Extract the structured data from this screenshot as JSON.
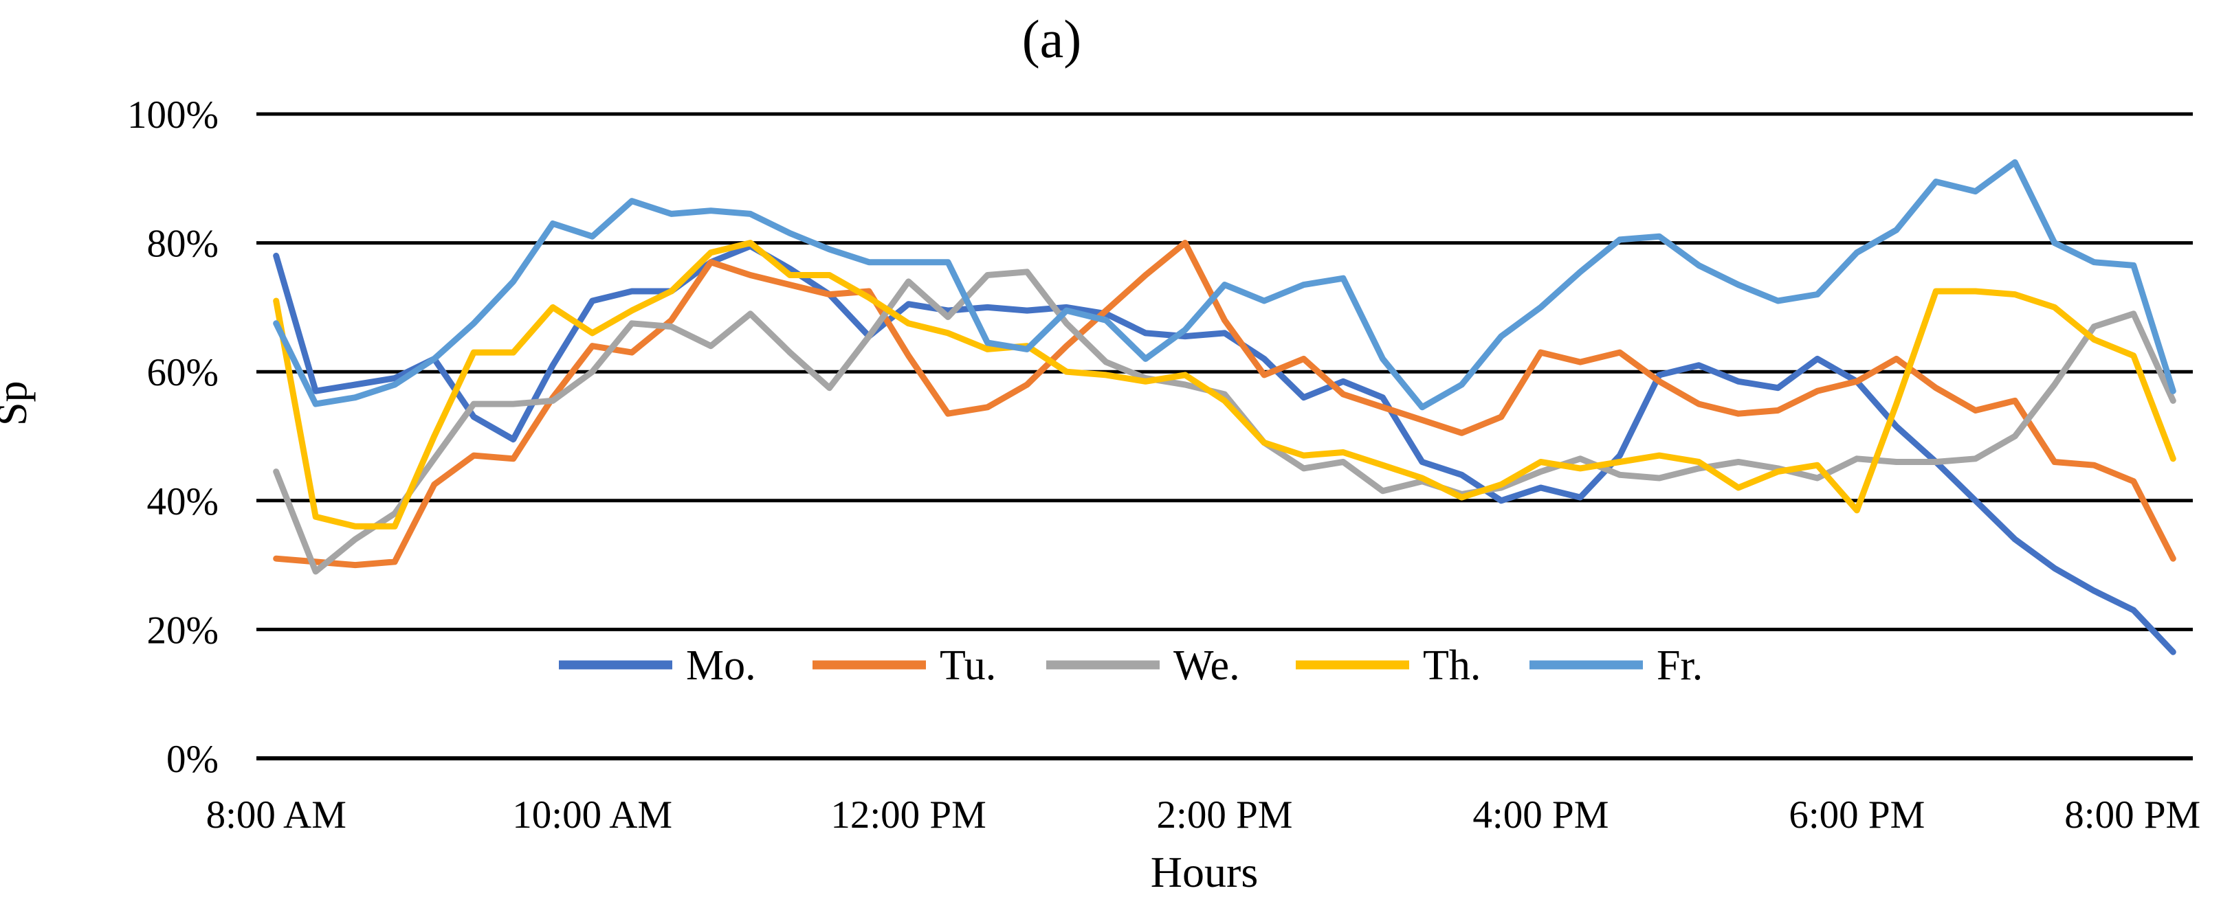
{
  "title": "(a)",
  "y_axis": {
    "title": "Sp"
  },
  "x_axis": {
    "title": "Hours"
  },
  "chart_data": {
    "type": "line",
    "title": "(a)",
    "xlabel": "Hours",
    "ylabel": "Sp",
    "ylim": [
      0,
      100
    ],
    "y_tick_step": 20,
    "y_tick_labels": [
      "0%",
      "20%",
      "40%",
      "60%",
      "80%",
      "100%"
    ],
    "grid": "horizontal",
    "legend_position": "bottom-inside",
    "x": [
      "8:00 AM",
      "8:15 AM",
      "8:30 AM",
      "8:45 AM",
      "9:00 AM",
      "9:15 AM",
      "9:30 AM",
      "9:45 AM",
      "10:00 AM",
      "10:15 AM",
      "10:30 AM",
      "10:45 AM",
      "11:00 AM",
      "11:15 AM",
      "11:30 AM",
      "11:45 AM",
      "12:00 PM",
      "12:15 PM",
      "12:30 PM",
      "12:45 PM",
      "1:00 PM",
      "1:15 PM",
      "1:30 PM",
      "1:45 PM",
      "2:00 PM",
      "2:15 PM",
      "2:30 PM",
      "2:45 PM",
      "3:00 PM",
      "3:15 PM",
      "3:30 PM",
      "3:45 PM",
      "4:00 PM",
      "4:15 PM",
      "4:30 PM",
      "4:45 PM",
      "5:00 PM",
      "5:15 PM",
      "5:30 PM",
      "5:45 PM",
      "6:00 PM",
      "6:15 PM",
      "6:30 PM",
      "6:45 PM",
      "7:00 PM",
      "7:15 PM",
      "7:30 PM",
      "7:45 PM",
      "8:00 PM"
    ],
    "x_tick_indices": [
      0,
      8,
      16,
      24,
      32,
      40,
      48
    ],
    "x_tick_labels": [
      "8:00 AM",
      "10:00 AM",
      "12:00 PM",
      "2:00 PM",
      "4:00 PM",
      "6:00 PM",
      "8:00 PM"
    ],
    "series": [
      {
        "name": "Mo.",
        "color": "#4472C4",
        "values": [
          78,
          57,
          58,
          59,
          62,
          53,
          49.5,
          61,
          71,
          72.5,
          72.5,
          77,
          79.5,
          76,
          72,
          65.5,
          70.5,
          69.5,
          70,
          69.5,
          70,
          69,
          66,
          65.5,
          66,
          62,
          56,
          58.5,
          56,
          46,
          44,
          40,
          42,
          40.5,
          47,
          59.5,
          61,
          58.5,
          57.5,
          62,
          58.5,
          51.5,
          46,
          40,
          34,
          29.5,
          26,
          23,
          16.5
        ]
      },
      {
        "name": "Tu.",
        "color": "#ED7D31",
        "values": [
          31,
          30.5,
          30,
          30.5,
          42.5,
          47,
          46.5,
          56,
          64,
          63,
          68,
          77,
          75,
          73.5,
          72,
          72.5,
          62.5,
          53.5,
          54.5,
          58,
          64,
          69.5,
          75,
          80,
          68,
          59.5,
          62,
          56.5,
          54.5,
          52.5,
          50.5,
          53,
          63,
          61.5,
          63,
          58.5,
          55,
          53.5,
          54,
          57,
          58.5,
          62,
          57.5,
          54,
          55.5,
          46,
          45.5,
          43,
          31
        ]
      },
      {
        "name": "We.",
        "color": "#A5A5A5",
        "values": [
          44.5,
          29,
          34,
          38,
          46.5,
          55,
          55,
          55.5,
          60,
          67.5,
          67,
          64,
          69,
          63,
          57.5,
          65.5,
          74,
          68.5,
          75,
          75.5,
          67.5,
          61.5,
          59,
          58,
          56.5,
          49,
          45,
          46,
          41.5,
          43,
          41,
          42,
          44.5,
          46.5,
          44,
          43.5,
          45,
          46,
          45,
          43.5,
          46.5,
          46,
          46,
          46.5,
          50,
          58,
          67,
          69,
          55.5
        ]
      },
      {
        "name": "Th.",
        "color": "#FFC000",
        "values": [
          71,
          37.5,
          36,
          36,
          50,
          63,
          63,
          70,
          66,
          69.5,
          72.5,
          78.5,
          80,
          75,
          75,
          71.5,
          67.5,
          66,
          63.5,
          64,
          60,
          59.5,
          58.5,
          59.5,
          55.5,
          49,
          47,
          47.5,
          45.5,
          43.5,
          40.5,
          42.5,
          46,
          45,
          46,
          47,
          46,
          42,
          44.5,
          45.5,
          38.5,
          55,
          72.5,
          72.5,
          72,
          70,
          65,
          62.5,
          46.5
        ]
      },
      {
        "name": "Fr.",
        "color": "#5B9BD5",
        "values": [
          67.5,
          55,
          56,
          58,
          62,
          67.5,
          74,
          83,
          81,
          86.5,
          84.5,
          85,
          84.5,
          81.5,
          79,
          77,
          77,
          77,
          64.5,
          63.5,
          69.5,
          68,
          62,
          66.5,
          73.5,
          71,
          73.5,
          74.5,
          62,
          54.5,
          58,
          65.5,
          70,
          75.5,
          80.5,
          81,
          76.5,
          73.5,
          71,
          72,
          78.5,
          82,
          89.5,
          88,
          92.5,
          80,
          77,
          76.5,
          57
        ]
      }
    ]
  },
  "legend": {
    "items": [
      "Mo.",
      "Tu.",
      "We.",
      "Th.",
      "Fr."
    ]
  }
}
